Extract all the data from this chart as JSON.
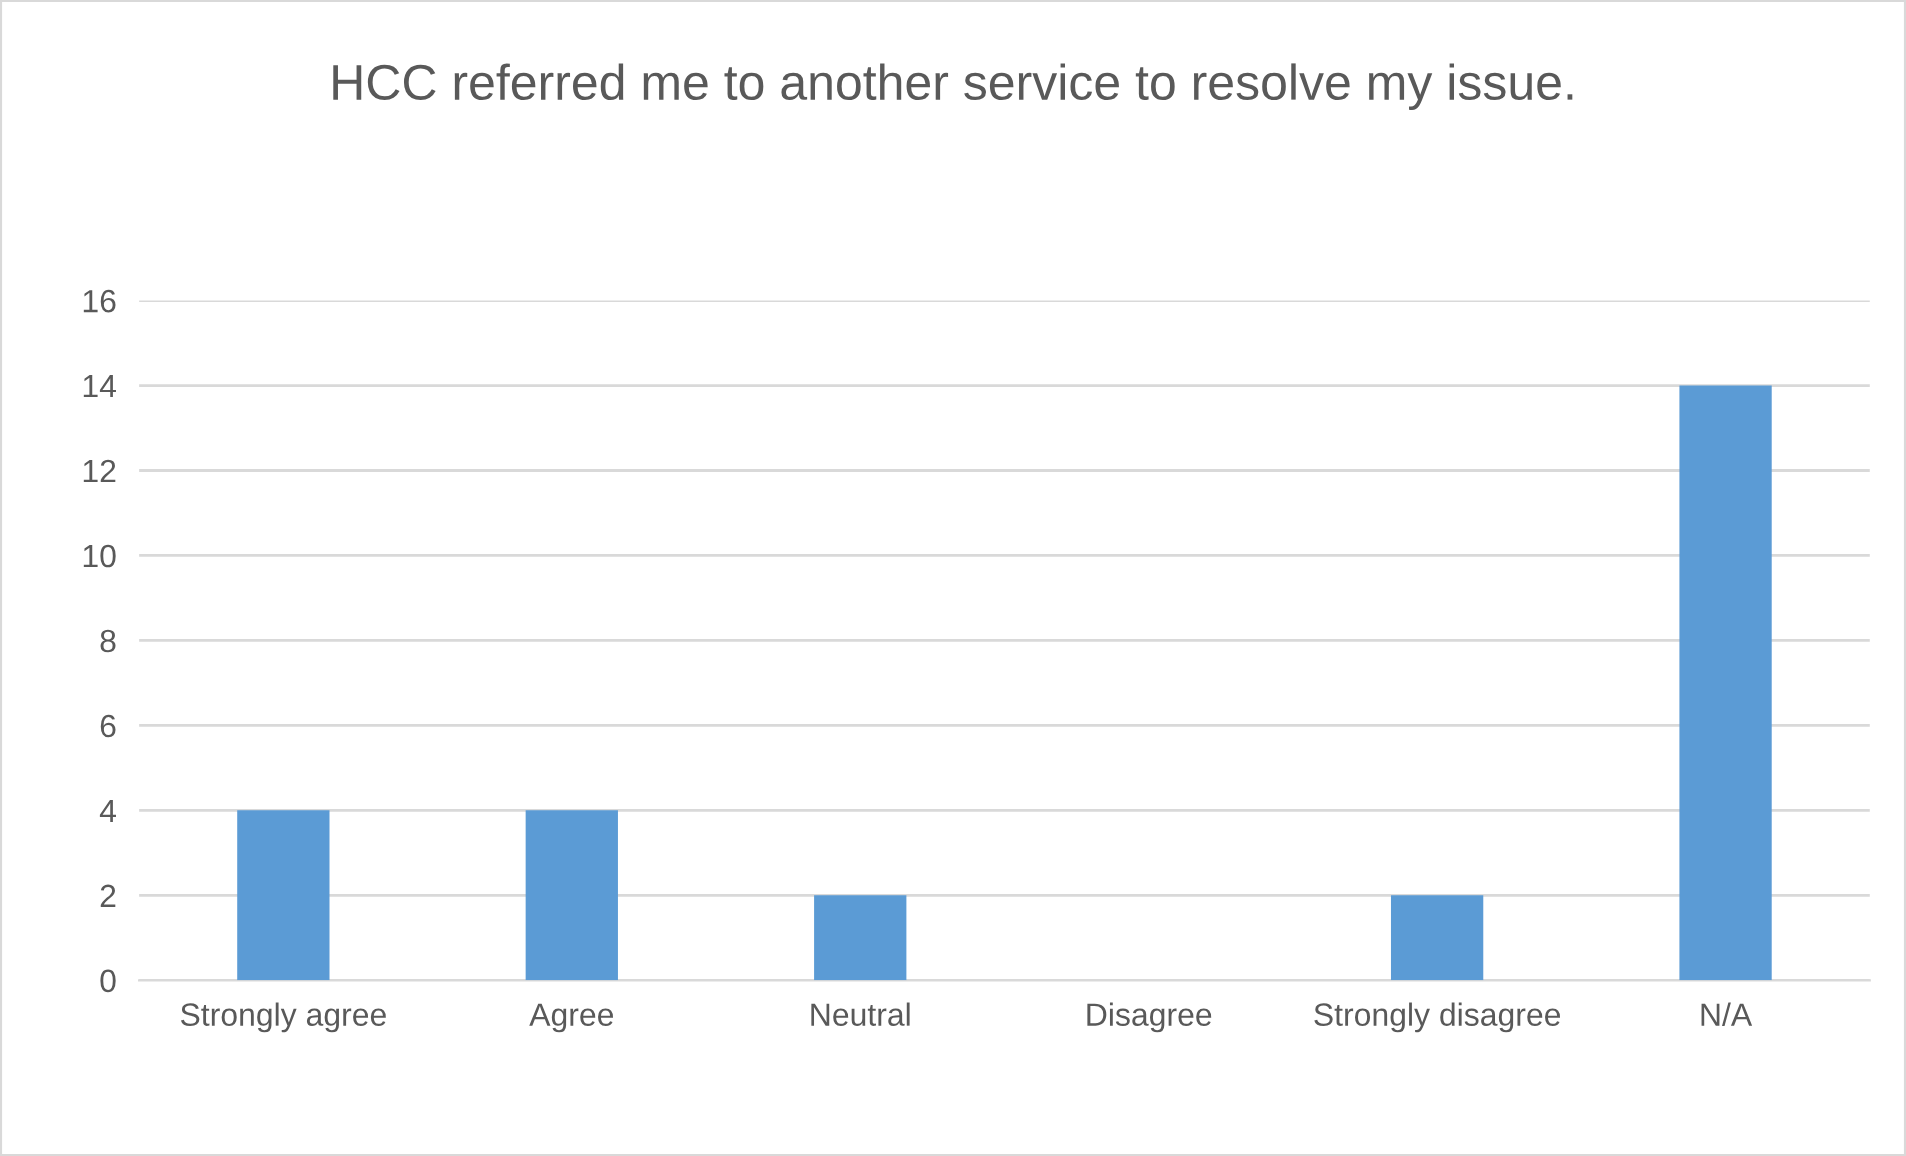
{
  "chart_data": {
    "type": "bar",
    "title": "HCC referred me to another service to resolve my issue.",
    "categories": [
      "Strongly agree",
      "Agree",
      "Neutral",
      "Disagree",
      "Strongly disagree",
      "N/A"
    ],
    "values": [
      4,
      4,
      2,
      0,
      2,
      14
    ],
    "color": "#5b9bd5",
    "ylim": [
      0,
      16
    ],
    "yticks": [
      0,
      2,
      4,
      6,
      8,
      10,
      12,
      14,
      16
    ],
    "grid": "y"
  }
}
